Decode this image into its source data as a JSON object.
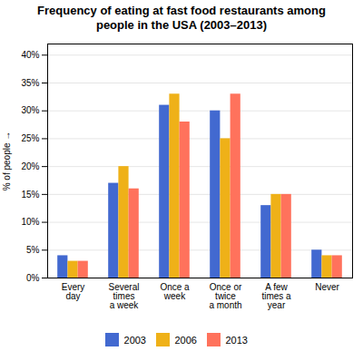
{
  "chart_data": {
    "type": "bar",
    "title": "Frequency of eating at fast food restaurants among\npeople in the USA (2003–2013)",
    "categories": [
      "Every\nday",
      "Several\ntimes\na week",
      "Once a\nweek",
      "Once or\ntwice\na month",
      "A few\ntimes a\nyear",
      "Never"
    ],
    "series": [
      {
        "name": "2003",
        "values": [
          4,
          17,
          31,
          30,
          13,
          5
        ]
      },
      {
        "name": "2006",
        "values": [
          3,
          20,
          33,
          25,
          15,
          4
        ]
      },
      {
        "name": "2013",
        "values": [
          3,
          16,
          28,
          33,
          15,
          4
        ]
      }
    ],
    "ylabel": "% of people",
    "ylim": [
      0,
      42
    ],
    "yticks": [
      {
        "value": 0,
        "label": "0%"
      },
      {
        "value": 5,
        "label": "5%"
      },
      {
        "value": 10,
        "label": "10%"
      },
      {
        "value": 15,
        "label": "15%"
      },
      {
        "value": 20,
        "label": "20%"
      },
      {
        "value": 25,
        "label": "25%"
      },
      {
        "value": 30,
        "label": "30%"
      },
      {
        "value": 35,
        "label": "35%"
      },
      {
        "value": 40,
        "label": "40%"
      }
    ],
    "grid": true,
    "legend": "bottom"
  }
}
